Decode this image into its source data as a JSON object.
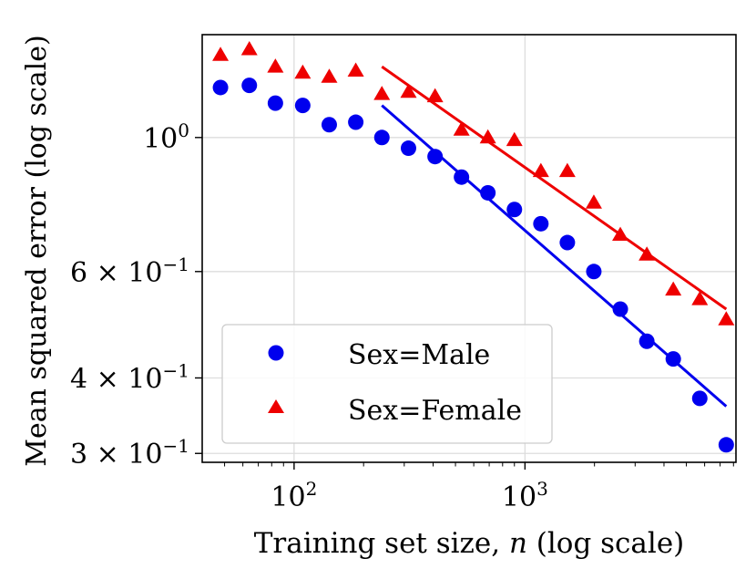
{
  "chart_data": {
    "type": "scatter",
    "xlabel": "Training set size, n (log scale)",
    "xlabel_prefix": "Training set size, ",
    "xlabel_var": "n",
    "xlabel_suffix": " (log scale)",
    "ylabel": "Mean squared error (log scale)",
    "x_scale": "log",
    "y_scale": "log",
    "xlim": [
      40,
      8200
    ],
    "ylim": [
      0.29,
      1.48
    ],
    "grid": true,
    "legend_position": "lower-left",
    "x_ticks": [
      {
        "value": 100,
        "base": "10",
        "exp": "2"
      },
      {
        "value": 1000,
        "base": "10",
        "exp": "3"
      }
    ],
    "y_ticks": [
      {
        "value": 1.0,
        "mant": "",
        "base": "10",
        "exp": "0"
      },
      {
        "value": 0.6,
        "mant": "6 × ",
        "base": "10",
        "exp": "−1"
      },
      {
        "value": 0.4,
        "mant": "4 × ",
        "base": "10",
        "exp": "−1"
      },
      {
        "value": 0.3,
        "mant": "3 × ",
        "base": "10",
        "exp": "−1"
      }
    ],
    "x_minor_ticks": [
      50,
      60,
      70,
      80,
      90,
      200,
      300,
      400,
      500,
      600,
      700,
      800,
      900,
      2000,
      3000,
      4000,
      5000,
      6000,
      7000,
      8000
    ],
    "series": [
      {
        "name": "Sex=Male",
        "marker": "circle",
        "color": "#0000ee",
        "x": [
          48,
          64,
          83,
          109,
          142,
          185,
          240,
          313,
          408,
          531,
          691,
          900,
          1172,
          1526,
          1987,
          2588,
          3371,
          4389,
          5716,
          7443
        ],
        "y": [
          1.21,
          1.22,
          1.14,
          1.13,
          1.05,
          1.06,
          1.0,
          0.96,
          0.93,
          0.86,
          0.81,
          0.76,
          0.72,
          0.67,
          0.6,
          0.52,
          0.46,
          0.43,
          0.37,
          0.31
        ],
        "fit_line": {
          "x": [
            240,
            7443
          ],
          "y": [
            1.13,
            0.359
          ]
        }
      },
      {
        "name": "Sex=Female",
        "marker": "triangle",
        "color": "#ee0000",
        "x": [
          48,
          64,
          83,
          109,
          142,
          185,
          240,
          313,
          408,
          531,
          691,
          900,
          1172,
          1526,
          1987,
          2588,
          3371,
          4389,
          5716,
          7443
        ],
        "y": [
          1.37,
          1.4,
          1.31,
          1.28,
          1.26,
          1.29,
          1.18,
          1.19,
          1.17,
          1.03,
          1.0,
          0.99,
          0.88,
          0.88,
          0.78,
          0.69,
          0.64,
          0.56,
          0.54,
          0.5
        ],
        "fit_line": {
          "x": [
            240,
            7443
          ],
          "y": [
            1.31,
            0.52
          ]
        }
      }
    ]
  }
}
